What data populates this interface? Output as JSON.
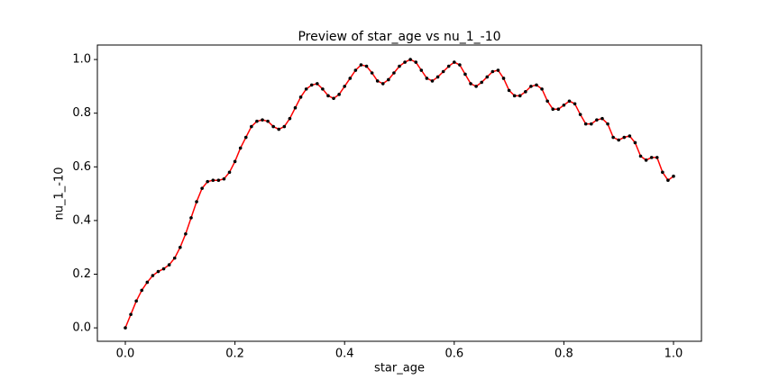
{
  "chart_data": {
    "type": "line",
    "title": "Preview of star_age vs nu_1_-10",
    "xlabel": "star_age",
    "ylabel": "nu_1_-10",
    "x": [
      0.0,
      0.01,
      0.02,
      0.03,
      0.04,
      0.05,
      0.06,
      0.07,
      0.08,
      0.09,
      0.1,
      0.11,
      0.12,
      0.13,
      0.14,
      0.15,
      0.16,
      0.17,
      0.18,
      0.19,
      0.2,
      0.21,
      0.22,
      0.23,
      0.24,
      0.25,
      0.26,
      0.27,
      0.28,
      0.29,
      0.3,
      0.31,
      0.32,
      0.33,
      0.34,
      0.35,
      0.36,
      0.37,
      0.38,
      0.39,
      0.4,
      0.41,
      0.42,
      0.43,
      0.44,
      0.45,
      0.46,
      0.47,
      0.48,
      0.49,
      0.5,
      0.51,
      0.52,
      0.53,
      0.54,
      0.55,
      0.56,
      0.57,
      0.58,
      0.59,
      0.6,
      0.61,
      0.62,
      0.63,
      0.64,
      0.65,
      0.66,
      0.67,
      0.68,
      0.69,
      0.7,
      0.71,
      0.72,
      0.73,
      0.74,
      0.75,
      0.76,
      0.77,
      0.78,
      0.79,
      0.8,
      0.81,
      0.82,
      0.83,
      0.84,
      0.85,
      0.86,
      0.87,
      0.88,
      0.89,
      0.9,
      0.91,
      0.92,
      0.93,
      0.94,
      0.95,
      0.96,
      0.97,
      0.98,
      0.99,
      1.0
    ],
    "series": [
      {
        "color": "#ff0000",
        "marker_color": "#000000",
        "values": [
          0.0,
          0.05,
          0.1,
          0.14,
          0.17,
          0.195,
          0.21,
          0.22,
          0.235,
          0.26,
          0.3,
          0.35,
          0.41,
          0.47,
          0.52,
          0.545,
          0.55,
          0.55,
          0.555,
          0.58,
          0.62,
          0.67,
          0.71,
          0.75,
          0.77,
          0.775,
          0.77,
          0.75,
          0.74,
          0.75,
          0.78,
          0.82,
          0.86,
          0.89,
          0.905,
          0.91,
          0.89,
          0.865,
          0.855,
          0.87,
          0.9,
          0.93,
          0.96,
          0.98,
          0.975,
          0.95,
          0.92,
          0.91,
          0.925,
          0.95,
          0.975,
          0.99,
          1.0,
          0.99,
          0.96,
          0.93,
          0.92,
          0.935,
          0.955,
          0.975,
          0.99,
          0.98,
          0.945,
          0.91,
          0.9,
          0.915,
          0.935,
          0.955,
          0.96,
          0.93,
          0.885,
          0.865,
          0.865,
          0.88,
          0.9,
          0.905,
          0.89,
          0.845,
          0.815,
          0.815,
          0.83,
          0.845,
          0.835,
          0.795,
          0.76,
          0.76,
          0.775,
          0.78,
          0.76,
          0.71,
          0.7,
          0.71,
          0.715,
          0.69,
          0.64,
          0.625,
          0.635,
          0.635,
          0.58,
          0.55,
          0.565
        ]
      }
    ],
    "xlim": [
      -0.051,
      1.051
    ],
    "ylim": [
      -0.05,
      1.054
    ],
    "xticks": [
      {
        "value": 0.0,
        "label": "0.0"
      },
      0.2,
      0.4,
      0.6,
      0.8,
      {
        "value": 1.0,
        "label": "1.0"
      }
    ],
    "yticks": [
      {
        "value": 0.0,
        "label": "0.0"
      },
      0.2,
      0.4,
      0.6,
      0.8,
      {
        "value": 1.0,
        "label": "1.0"
      }
    ],
    "grid": false
  }
}
